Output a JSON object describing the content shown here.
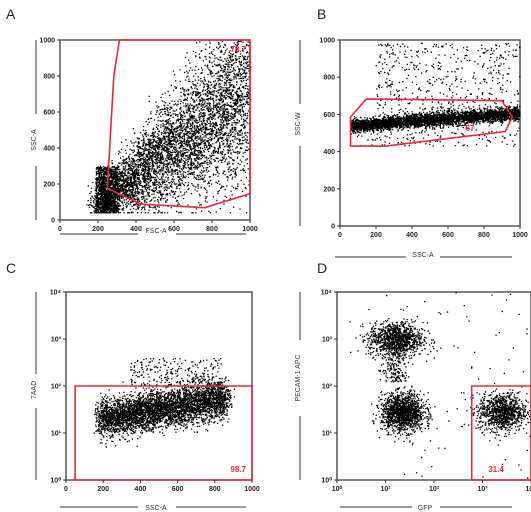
{
  "chart_data": [
    {
      "panel": "A",
      "type": "scatter",
      "xlabel": "FSC-A",
      "ylabel": "SSC-A",
      "xscale": "linear",
      "yscale": "linear",
      "xlim": [
        0,
        1024
      ],
      "ylim": [
        0,
        1024
      ],
      "xticks": [
        "0",
        "200",
        "400",
        "600",
        "800",
        "1000"
      ],
      "yticks": [
        "0",
        "200",
        "400",
        "600",
        "800",
        "1000"
      ],
      "gate_label": "78.7",
      "gate_color": "#e8283c",
      "gate_polygon": [
        [
          320,
          1024
        ],
        [
          1024,
          1024
        ],
        [
          1024,
          150
        ],
        [
          780,
          70
        ],
        [
          440,
          90
        ],
        [
          255,
          180
        ],
        [
          290,
          820
        ]
      ],
      "points_description_count": 5200
    },
    {
      "panel": "B",
      "type": "scatter",
      "xlabel": "SSC-A",
      "ylabel": "SSC-W",
      "xscale": "linear",
      "yscale": "linear",
      "xlim": [
        0,
        1024
      ],
      "ylim": [
        0,
        1024
      ],
      "xticks": [
        "0",
        "200",
        "400",
        "600",
        "800",
        "1000"
      ],
      "yticks": [
        "0",
        "200",
        "400",
        "600",
        "800",
        "1000"
      ],
      "gate_label": "67",
      "gate_color": "#e8283c",
      "gate_polygon": [
        [
          60,
          440
        ],
        [
          60,
          600
        ],
        [
          150,
          700
        ],
        [
          920,
          690
        ],
        [
          980,
          600
        ],
        [
          940,
          520
        ],
        [
          260,
          440
        ]
      ],
      "points_description_count": 4000
    },
    {
      "panel": "C",
      "type": "scatter",
      "xlabel": "SSC-A",
      "ylabel": "7AAD",
      "xscale": "linear",
      "yscale": "log",
      "xlim": [
        0,
        1024
      ],
      "ylim": [
        1,
        10000
      ],
      "xticks": [
        "0",
        "200",
        "400",
        "600",
        "800",
        "1000"
      ],
      "yticks": [
        "10⁰",
        "10¹",
        "10²",
        "10³",
        "10⁴"
      ],
      "gate_label": "98.7",
      "gate_color": "#e8283c",
      "gate_polygon": [
        [
          50,
          1
        ],
        [
          1024,
          1
        ],
        [
          1024,
          100
        ],
        [
          50,
          100
        ]
      ],
      "points_description_count": 4200
    },
    {
      "panel": "D",
      "type": "scatter",
      "xlabel": "GFP",
      "ylabel": "PECAM-1 APC",
      "xscale": "log",
      "yscale": "log",
      "xlim": [
        1,
        10000
      ],
      "ylim": [
        1,
        10000
      ],
      "xticks": [
        "10⁰",
        "10¹",
        "10²",
        "10³",
        "10⁴"
      ],
      "yticks": [
        "10⁰",
        "10¹",
        "10²",
        "10³",
        "10⁴"
      ],
      "gate_label": "31.4",
      "gate_color": "#e8283c",
      "gate_polygon": [
        [
          600,
          1
        ],
        [
          10000,
          1
        ],
        [
          10000,
          100
        ],
        [
          600,
          100
        ]
      ],
      "points_description_count": 3300
    }
  ]
}
